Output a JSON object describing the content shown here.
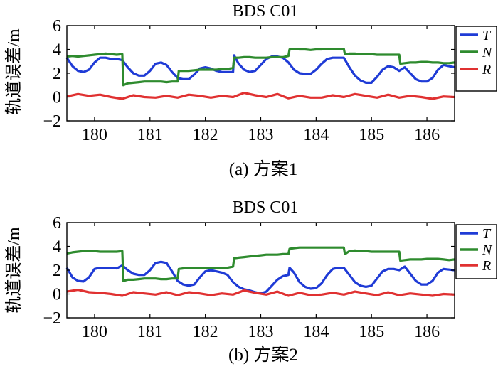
{
  "chart_data": [
    {
      "type": "line",
      "title": "BDS C01",
      "caption": "(a) 方案1",
      "ylabel": "轨道误差/m",
      "xlabel": "",
      "xlim": [
        179.5,
        186.5
      ],
      "ylim": [
        -2,
        6
      ],
      "xticks": [
        "180",
        "181",
        "182",
        "183",
        "184",
        "185",
        "186"
      ],
      "yticks": [
        "−2",
        "0",
        "2",
        "4",
        "6"
      ],
      "legend_placement": "top-right",
      "grid": false,
      "series": [
        {
          "name": "T",
          "color": "#1f3bd6",
          "x": [
            179.5,
            179.6,
            179.7,
            179.8,
            179.9,
            180.0,
            180.1,
            180.2,
            180.3,
            180.4,
            180.5,
            180.6,
            180.7,
            180.8,
            180.9,
            181.0,
            181.1,
            181.2,
            181.3,
            181.4,
            181.5,
            181.6,
            181.7,
            181.8,
            181.9,
            182.0,
            182.1,
            182.2,
            182.3,
            182.4,
            182.5,
            182.52,
            182.6,
            182.7,
            182.8,
            182.9,
            183.0,
            183.1,
            183.2,
            183.3,
            183.4,
            183.5,
            183.6,
            183.7,
            183.8,
            183.9,
            184.0,
            184.1,
            184.2,
            184.3,
            184.4,
            184.5,
            184.6,
            184.7,
            184.8,
            184.9,
            185.0,
            185.1,
            185.2,
            185.3,
            185.4,
            185.5,
            185.6,
            185.7,
            185.8,
            185.9,
            186.0,
            186.1,
            186.2,
            186.3,
            186.4,
            186.5
          ],
          "y": [
            3.3,
            2.6,
            2.2,
            2.1,
            2.3,
            2.9,
            3.3,
            3.3,
            3.2,
            3.2,
            3.1,
            2.5,
            2.0,
            1.8,
            1.8,
            2.2,
            2.8,
            2.9,
            2.7,
            2.1,
            1.6,
            1.5,
            1.5,
            1.9,
            2.4,
            2.5,
            2.4,
            2.2,
            2.1,
            2.1,
            2.1,
            3.5,
            2.8,
            2.3,
            2.1,
            2.2,
            2.7,
            3.2,
            3.4,
            3.4,
            3.3,
            2.9,
            2.3,
            2.0,
            1.95,
            1.95,
            2.3,
            2.8,
            3.2,
            3.3,
            3.3,
            3.3,
            2.5,
            1.8,
            1.4,
            1.2,
            1.2,
            1.7,
            2.3,
            2.6,
            2.5,
            2.2,
            2.5,
            2.0,
            1.5,
            1.3,
            1.3,
            1.6,
            2.3,
            2.7,
            2.6,
            2.5
          ]
        },
        {
          "name": "N",
          "color": "#2e8b2e",
          "x": [
            179.5,
            179.6,
            179.7,
            179.8,
            179.9,
            180.0,
            180.1,
            180.2,
            180.3,
            180.4,
            180.5,
            180.52,
            180.6,
            180.7,
            180.8,
            180.9,
            181.0,
            181.1,
            181.2,
            181.3,
            181.4,
            181.5,
            181.52,
            181.6,
            181.7,
            181.8,
            181.9,
            182.0,
            182.1,
            182.2,
            182.3,
            182.4,
            182.5,
            182.52,
            182.6,
            182.7,
            182.8,
            182.9,
            183.0,
            183.1,
            183.2,
            183.3,
            183.4,
            183.5,
            183.52,
            183.6,
            183.7,
            183.8,
            183.9,
            184.0,
            184.1,
            184.2,
            184.3,
            184.4,
            184.5,
            184.52,
            184.6,
            184.7,
            184.8,
            184.9,
            185.0,
            185.1,
            185.2,
            185.3,
            185.4,
            185.5,
            185.52,
            185.6,
            185.7,
            185.8,
            185.9,
            186.0,
            186.1,
            186.2,
            186.3,
            186.4,
            186.5
          ],
          "y": [
            3.4,
            3.45,
            3.4,
            3.45,
            3.5,
            3.55,
            3.6,
            3.65,
            3.6,
            3.55,
            3.6,
            1.0,
            1.15,
            1.2,
            1.25,
            1.3,
            1.3,
            1.3,
            1.3,
            1.25,
            1.3,
            1.3,
            2.2,
            2.2,
            2.2,
            2.25,
            2.3,
            2.3,
            2.3,
            2.3,
            2.35,
            2.35,
            2.45,
            3.3,
            3.3,
            3.35,
            3.35,
            3.3,
            3.3,
            3.3,
            3.35,
            3.35,
            3.35,
            3.45,
            4.0,
            4.05,
            4.0,
            4.0,
            3.95,
            4.0,
            4.0,
            4.05,
            4.05,
            4.05,
            4.05,
            3.6,
            3.65,
            3.65,
            3.6,
            3.6,
            3.6,
            3.55,
            3.55,
            3.55,
            3.55,
            3.55,
            2.8,
            2.85,
            2.9,
            2.9,
            2.95,
            2.95,
            2.9,
            2.9,
            2.85,
            2.85,
            2.9
          ]
        },
        {
          "name": "R",
          "color": "#e03131",
          "x": [
            179.5,
            179.7,
            179.9,
            180.1,
            180.3,
            180.5,
            180.7,
            180.9,
            181.1,
            181.3,
            181.5,
            181.7,
            181.9,
            182.1,
            182.3,
            182.5,
            182.7,
            182.9,
            183.1,
            183.3,
            183.5,
            183.7,
            183.9,
            184.1,
            184.3,
            184.5,
            184.7,
            184.9,
            185.1,
            185.3,
            185.5,
            185.7,
            185.9,
            186.1,
            186.3,
            186.5
          ],
          "y": [
            0.05,
            0.25,
            0.1,
            0.2,
            0.0,
            -0.15,
            0.15,
            0.0,
            -0.05,
            0.1,
            -0.05,
            0.2,
            0.1,
            -0.05,
            0.1,
            0.0,
            0.35,
            0.15,
            0.0,
            0.25,
            -0.1,
            0.1,
            -0.05,
            -0.05,
            0.15,
            0.0,
            0.25,
            0.1,
            -0.05,
            0.2,
            -0.05,
            0.1,
            0.0,
            -0.15,
            0.05,
            0.0
          ]
        }
      ]
    },
    {
      "type": "line",
      "title": "BDS C01",
      "caption": "(b) 方案2",
      "ylabel": "轨道误差/m",
      "xlabel": "",
      "xlim": [
        179.5,
        186.5
      ],
      "ylim": [
        -2,
        6
      ],
      "xticks": [
        "180",
        "181",
        "182",
        "183",
        "184",
        "185",
        "186"
      ],
      "yticks": [
        "−2",
        "0",
        "2",
        "4",
        "6"
      ],
      "legend_placement": "top-right",
      "grid": false,
      "series": [
        {
          "name": "T",
          "color": "#1f3bd6",
          "x": [
            179.5,
            179.6,
            179.7,
            179.8,
            179.9,
            180.0,
            180.1,
            180.2,
            180.3,
            180.4,
            180.5,
            180.6,
            180.7,
            180.8,
            180.9,
            181.0,
            181.1,
            181.2,
            181.3,
            181.4,
            181.5,
            181.6,
            181.7,
            181.8,
            181.9,
            182.0,
            182.1,
            182.2,
            182.3,
            182.4,
            182.5,
            182.6,
            182.7,
            182.8,
            182.9,
            183.0,
            183.1,
            183.2,
            183.3,
            183.4,
            183.5,
            183.52,
            183.6,
            183.7,
            183.8,
            183.9,
            184.0,
            184.1,
            184.2,
            184.3,
            184.4,
            184.5,
            184.6,
            184.7,
            184.8,
            184.9,
            185.0,
            185.1,
            185.2,
            185.3,
            185.4,
            185.5,
            185.6,
            185.7,
            185.8,
            185.9,
            186.0,
            186.1,
            186.2,
            186.3,
            186.4,
            186.5
          ],
          "y": [
            2.2,
            1.4,
            1.1,
            1.05,
            1.4,
            2.1,
            2.2,
            2.2,
            2.2,
            2.15,
            2.4,
            2.0,
            1.7,
            1.6,
            1.6,
            2.0,
            2.6,
            2.7,
            2.6,
            1.9,
            1.1,
            0.8,
            0.7,
            0.8,
            1.4,
            1.9,
            2.0,
            1.9,
            1.8,
            1.6,
            1.0,
            0.6,
            0.4,
            0.3,
            0.15,
            0.05,
            0.2,
            0.7,
            1.2,
            1.5,
            1.6,
            2.2,
            1.8,
            1.0,
            0.6,
            0.45,
            0.5,
            0.9,
            1.6,
            2.1,
            2.2,
            2.2,
            1.6,
            1.0,
            0.7,
            0.6,
            0.7,
            1.3,
            1.9,
            2.1,
            2.1,
            2.0,
            2.3,
            1.7,
            1.1,
            0.8,
            0.8,
            1.1,
            1.8,
            2.1,
            2.05,
            2.0
          ]
        },
        {
          "name": "N",
          "color": "#2e8b2e",
          "x": [
            179.5,
            179.6,
            179.7,
            179.8,
            179.9,
            180.0,
            180.1,
            180.2,
            180.3,
            180.4,
            180.5,
            180.52,
            180.6,
            180.7,
            180.8,
            180.9,
            181.0,
            181.1,
            181.2,
            181.3,
            181.4,
            181.5,
            181.52,
            181.6,
            181.7,
            181.8,
            181.9,
            182.0,
            182.1,
            182.2,
            182.3,
            182.4,
            182.5,
            182.52,
            182.6,
            182.7,
            182.8,
            182.9,
            183.0,
            183.1,
            183.2,
            183.3,
            183.4,
            183.5,
            183.52,
            183.6,
            183.7,
            183.8,
            183.9,
            184.0,
            184.1,
            184.2,
            184.3,
            184.4,
            184.5,
            184.52,
            184.6,
            184.7,
            184.8,
            184.9,
            185.0,
            185.1,
            185.2,
            185.3,
            185.4,
            185.5,
            185.52,
            185.6,
            185.7,
            185.8,
            185.9,
            186.0,
            186.1,
            186.2,
            186.3,
            186.4,
            186.5
          ],
          "y": [
            3.4,
            3.5,
            3.55,
            3.6,
            3.6,
            3.6,
            3.55,
            3.55,
            3.55,
            3.55,
            3.6,
            1.1,
            1.2,
            1.2,
            1.25,
            1.3,
            1.3,
            1.3,
            1.25,
            1.25,
            1.3,
            1.3,
            2.1,
            2.15,
            2.2,
            2.2,
            2.2,
            2.2,
            2.2,
            2.2,
            2.2,
            2.2,
            2.3,
            3.0,
            3.05,
            3.1,
            3.15,
            3.2,
            3.25,
            3.3,
            3.3,
            3.3,
            3.35,
            3.35,
            3.8,
            3.85,
            3.9,
            3.9,
            3.9,
            3.9,
            3.9,
            3.9,
            3.9,
            3.9,
            3.9,
            3.35,
            3.6,
            3.65,
            3.6,
            3.6,
            3.55,
            3.55,
            3.55,
            3.55,
            3.55,
            3.55,
            2.8,
            2.85,
            2.9,
            2.9,
            2.9,
            2.95,
            2.95,
            2.95,
            2.9,
            2.85,
            2.9
          ]
        },
        {
          "name": "R",
          "color": "#e03131",
          "x": [
            179.5,
            179.7,
            179.9,
            180.1,
            180.3,
            180.5,
            180.7,
            180.9,
            181.1,
            181.3,
            181.5,
            181.7,
            181.9,
            182.1,
            182.3,
            182.5,
            182.7,
            182.9,
            183.1,
            183.3,
            183.5,
            183.7,
            183.9,
            184.1,
            184.3,
            184.5,
            184.7,
            184.9,
            185.1,
            185.3,
            185.5,
            185.7,
            185.9,
            186.1,
            186.3,
            186.5
          ],
          "y": [
            0.2,
            0.35,
            0.15,
            0.1,
            0.0,
            -0.15,
            0.15,
            0.05,
            -0.05,
            0.15,
            -0.1,
            0.15,
            0.05,
            -0.1,
            0.05,
            -0.05,
            0.3,
            0.1,
            -0.05,
            0.2,
            -0.15,
            0.1,
            -0.1,
            -0.05,
            0.1,
            -0.05,
            0.2,
            0.05,
            -0.1,
            0.15,
            -0.1,
            0.05,
            -0.05,
            -0.15,
            0.0,
            -0.05
          ]
        }
      ]
    }
  ]
}
